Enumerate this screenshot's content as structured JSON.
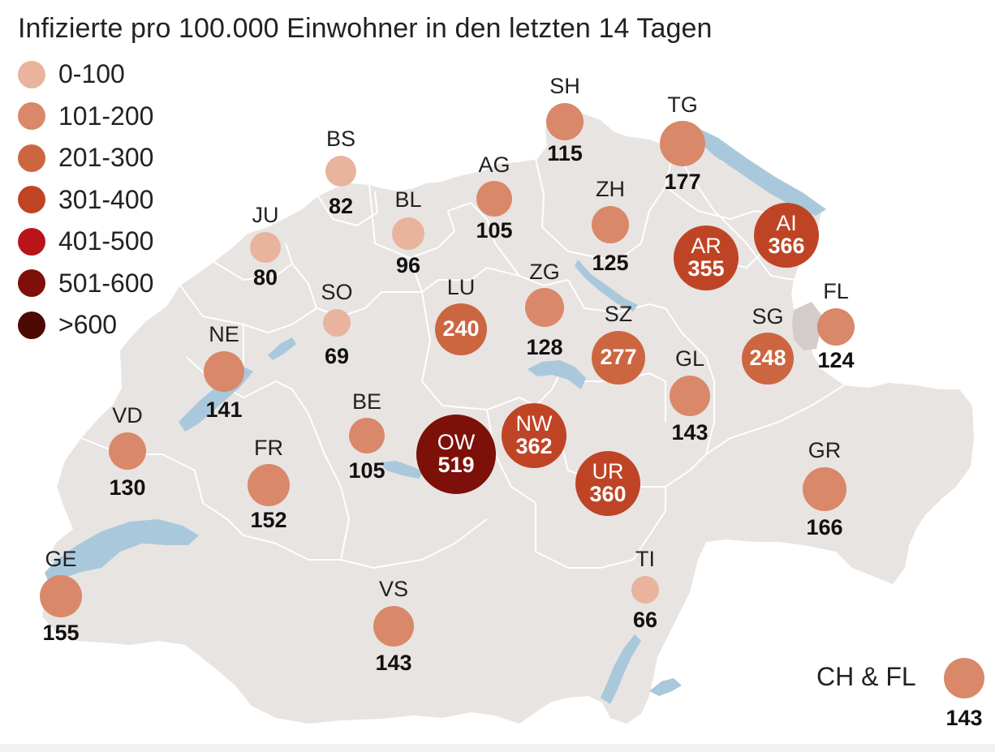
{
  "title": "Infizierte pro 100.000 Einwohner in den letzten 14 Tagen",
  "colors": {
    "land": "#e8e4e2",
    "border": "#ffffff",
    "water": "#a9c8dc",
    "fl_land": "#d4ccca"
  },
  "legend": [
    {
      "label": "0-100",
      "color": "#e8b49d"
    },
    {
      "label": "101-200",
      "color": "#d9886a"
    },
    {
      "label": "201-300",
      "color": "#cc6640"
    },
    {
      "label": "301-400",
      "color": "#bf4425"
    },
    {
      "label": "401-500",
      "color": "#b8141a"
    },
    {
      "label": "501-600",
      "color": "#7d1009"
    },
    {
      "label": ">600",
      "color": "#4d0a05"
    }
  ],
  "cantons": [
    {
      "code": "SH",
      "value": "115",
      "color": "#d9886a"
    },
    {
      "code": "TG",
      "value": "177",
      "color": "#d9886a"
    },
    {
      "code": "BS",
      "value": "82",
      "color": "#e8b49d"
    },
    {
      "code": "AG",
      "value": "105",
      "color": "#d9886a"
    },
    {
      "code": "BL",
      "value": "96",
      "color": "#e8b49d"
    },
    {
      "code": "ZH",
      "value": "125",
      "color": "#d9886a"
    },
    {
      "code": "JU",
      "value": "80",
      "color": "#e8b49d"
    },
    {
      "code": "AI",
      "value": "366",
      "color": "#bf4425"
    },
    {
      "code": "AR",
      "value": "355",
      "color": "#bf4425"
    },
    {
      "code": "LU",
      "value": "240",
      "color": "#cc6640"
    },
    {
      "code": "ZG",
      "value": "128",
      "color": "#d9886a"
    },
    {
      "code": "SO",
      "value": "69",
      "color": "#e8b49d"
    },
    {
      "code": "FL",
      "value": "124",
      "color": "#d9886a"
    },
    {
      "code": "SZ",
      "value": "277",
      "color": "#cc6640"
    },
    {
      "code": "SG",
      "value": "248",
      "color": "#cc6640"
    },
    {
      "code": "NE",
      "value": "141",
      "color": "#d9886a"
    },
    {
      "code": "GL",
      "value": "143",
      "color": "#d9886a"
    },
    {
      "code": "BE",
      "value": "105",
      "color": "#d9886a"
    },
    {
      "code": "NW",
      "value": "362",
      "color": "#bf4425"
    },
    {
      "code": "OW",
      "value": "519",
      "color": "#7d1009"
    },
    {
      "code": "VD",
      "value": "130",
      "color": "#d9886a"
    },
    {
      "code": "FR",
      "value": "152",
      "color": "#d9886a"
    },
    {
      "code": "UR",
      "value": "360",
      "color": "#bf4425"
    },
    {
      "code": "GR",
      "value": "166",
      "color": "#d9886a"
    },
    {
      "code": "GE",
      "value": "155",
      "color": "#d9886a"
    },
    {
      "code": "VS",
      "value": "143",
      "color": "#d9886a"
    },
    {
      "code": "TI",
      "value": "66",
      "color": "#e8b49d"
    }
  ],
  "total": {
    "label": "CH & FL",
    "value": "143",
    "color": "#d9886a"
  }
}
